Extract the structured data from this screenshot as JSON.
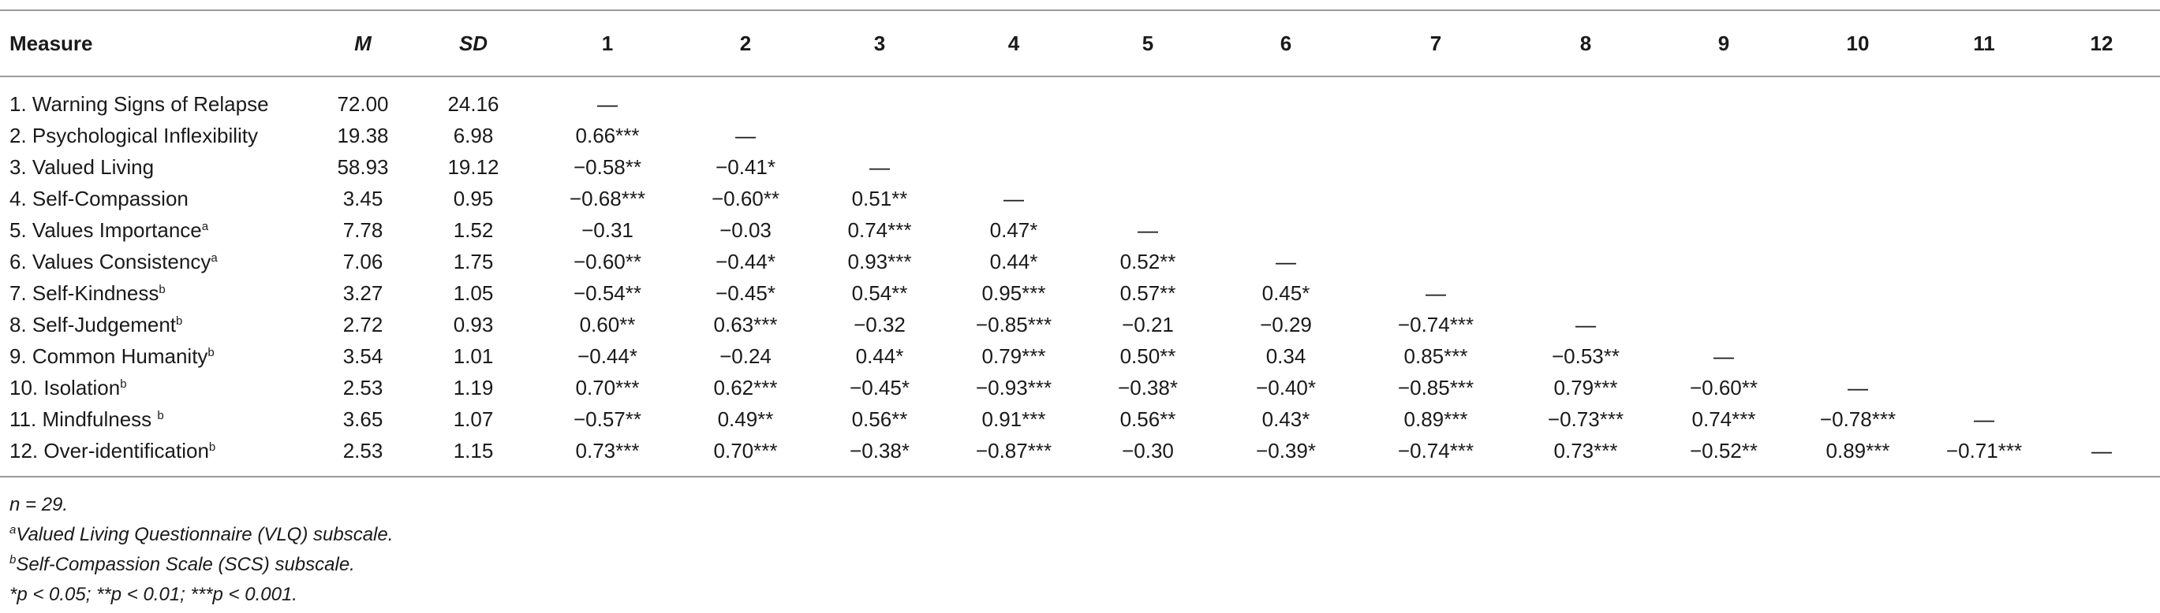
{
  "table": {
    "headers": {
      "measure": "Measure",
      "m": "M",
      "sd": "SD",
      "cols": [
        "1",
        "2",
        "3",
        "4",
        "5",
        "6",
        "7",
        "8",
        "9",
        "10",
        "11",
        "12"
      ]
    },
    "rows": [
      {
        "label": "1. Warning Signs of Relapse",
        "sup": "",
        "m": "72.00",
        "sd": "24.16",
        "cells": [
          "—",
          "",
          "",
          "",
          "",
          "",
          "",
          "",
          "",
          "",
          "",
          ""
        ]
      },
      {
        "label": "2. Psychological Inflexibility",
        "sup": "",
        "m": "19.38",
        "sd": "6.98",
        "cells": [
          "0.66***",
          "—",
          "",
          "",
          "",
          "",
          "",
          "",
          "",
          "",
          "",
          ""
        ]
      },
      {
        "label": "3. Valued Living",
        "sup": "",
        "m": "58.93",
        "sd": "19.12",
        "cells": [
          "−0.58**",
          "−0.41*",
          "—",
          "",
          "",
          "",
          "",
          "",
          "",
          "",
          "",
          ""
        ]
      },
      {
        "label": "4. Self-Compassion",
        "sup": "",
        "m": "3.45",
        "sd": "0.95",
        "cells": [
          "−0.68***",
          "−0.60**",
          "0.51**",
          "—",
          "",
          "",
          "",
          "",
          "",
          "",
          "",
          ""
        ]
      },
      {
        "label": "5. Values Importance",
        "sup": "a",
        "m": "7.78",
        "sd": "1.52",
        "cells": [
          "−0.31",
          "−0.03",
          "0.74***",
          "0.47*",
          "—",
          "",
          "",
          "",
          "",
          "",
          "",
          ""
        ]
      },
      {
        "label": "6. Values Consistency",
        "sup": "a",
        "m": "7.06",
        "sd": "1.75",
        "cells": [
          "−0.60**",
          "−0.44*",
          "0.93***",
          "0.44*",
          "0.52**",
          "—",
          "",
          "",
          "",
          "",
          "",
          ""
        ]
      },
      {
        "label": "7. Self-Kindness",
        "sup": "b",
        "m": "3.27",
        "sd": "1.05",
        "cells": [
          "−0.54**",
          "−0.45*",
          "0.54**",
          "0.95***",
          "0.57**",
          "0.45*",
          "—",
          "",
          "",
          "",
          "",
          ""
        ]
      },
      {
        "label": "8. Self-Judgement",
        "sup": "b",
        "m": "2.72",
        "sd": "0.93",
        "cells": [
          "0.60**",
          "0.63***",
          "−0.32",
          "−0.85***",
          "−0.21",
          "−0.29",
          "−0.74***",
          "—",
          "",
          "",
          "",
          ""
        ]
      },
      {
        "label": "9. Common Humanity",
        "sup": "b",
        "m": "3.54",
        "sd": "1.01",
        "cells": [
          "−0.44*",
          "−0.24",
          "0.44*",
          "0.79***",
          "0.50**",
          "0.34",
          "0.85***",
          "−0.53**",
          "—",
          "",
          "",
          ""
        ]
      },
      {
        "label": "10. Isolation",
        "sup": "b",
        "m": "2.53",
        "sd": "1.19",
        "cells": [
          "0.70***",
          "0.62***",
          "−0.45*",
          "−0.93***",
          "−0.38*",
          "−0.40*",
          "−0.85***",
          "0.79***",
          "−0.60**",
          "—",
          "",
          ""
        ]
      },
      {
        "label": "11. Mindfulness ",
        "sup": "b",
        "m": "3.65",
        "sd": "1.07",
        "cells": [
          "−0.57**",
          "0.49**",
          "0.56**",
          "0.91***",
          "0.56**",
          "0.43*",
          "0.89***",
          "−0.73***",
          "0.74***",
          "−0.78***",
          "—",
          ""
        ]
      },
      {
        "label": "12. Over-identification",
        "sup": "b",
        "m": "2.53",
        "sd": "1.15",
        "cells": [
          "0.73***",
          "0.70***",
          "−0.38*",
          "−0.87***",
          "−0.30",
          "−0.39*",
          "−0.74***",
          "0.73***",
          "−0.52**",
          "0.89***",
          "−0.71***",
          "—"
        ]
      }
    ]
  },
  "notes": {
    "n": "n = 29.",
    "a_sup": "a",
    "a_text": "Valued Living Questionnaire (VLQ) subscale.",
    "b_sup": "b",
    "b_text": "Self-Compassion Scale (SCS) subscale.",
    "p": "*p < 0.05; **p < 0.01; ***p < 0.001."
  }
}
